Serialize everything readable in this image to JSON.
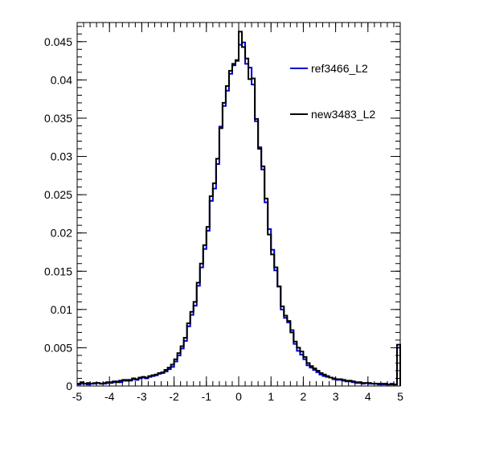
{
  "chart_data": {
    "type": "line",
    "title": "",
    "xlabel": "",
    "ylabel": "",
    "xlim": [
      -5,
      5
    ],
    "ylim": [
      0,
      0.0475
    ],
    "grid": false,
    "legend_position": "top-right",
    "x_ticks": [
      {
        "value": -5,
        "label": "-5"
      },
      {
        "value": -4,
        "label": "-4"
      },
      {
        "value": -3,
        "label": "-3"
      },
      {
        "value": -2,
        "label": "-2"
      },
      {
        "value": -1,
        "label": "-1"
      },
      {
        "value": 0,
        "label": "0"
      },
      {
        "value": 1,
        "label": "1"
      },
      {
        "value": 2,
        "label": "2"
      },
      {
        "value": 3,
        "label": "3"
      },
      {
        "value": 4,
        "label": "4"
      },
      {
        "value": 5,
        "label": "5"
      }
    ],
    "y_ticks": [
      {
        "value": 0,
        "label": "0"
      },
      {
        "value": 0.005,
        "label": "0.005"
      },
      {
        "value": 0.01,
        "label": "0.01"
      },
      {
        "value": 0.015,
        "label": "0.015"
      },
      {
        "value": 0.02,
        "label": "0.02"
      },
      {
        "value": 0.025,
        "label": "0.025"
      },
      {
        "value": 0.03,
        "label": "0.03"
      },
      {
        "value": 0.035,
        "label": "0.035"
      },
      {
        "value": 0.04,
        "label": "0.04"
      },
      {
        "value": 0.045,
        "label": "0.045"
      }
    ],
    "bin_edges": {
      "start": -5,
      "width": 0.1
    },
    "series": [
      {
        "name": "ref3466_L2",
        "color": "#0000cc",
        "values": [
          0.0002,
          0.0003,
          0.0003,
          0.0002,
          0.0003,
          0.0003,
          0.0004,
          0.0003,
          0.0003,
          0.0004,
          0.0004,
          0.0005,
          0.0006,
          0.0005,
          0.0007,
          0.0008,
          0.0007,
          0.0009,
          0.0008,
          0.001,
          0.0011,
          0.001,
          0.0012,
          0.0013,
          0.0014,
          0.0016,
          0.0017,
          0.0019,
          0.0022,
          0.0025,
          0.0032,
          0.004,
          0.0049,
          0.0059,
          0.0078,
          0.0093,
          0.0105,
          0.0131,
          0.0155,
          0.0179,
          0.0203,
          0.0242,
          0.0258,
          0.029,
          0.0339,
          0.0366,
          0.0386,
          0.0408,
          0.0419,
          0.0426,
          0.0446,
          0.0449,
          0.0421,
          0.0416,
          0.0394,
          0.0346,
          0.0312,
          0.0283,
          0.024,
          0.0205,
          0.0178,
          0.0151,
          0.013,
          0.01,
          0.0089,
          0.0083,
          0.0073,
          0.0055,
          0.0046,
          0.0041,
          0.0035,
          0.0027,
          0.0024,
          0.0021,
          0.0018,
          0.0015,
          0.0013,
          0.0012,
          0.0011,
          0.0009,
          0.0008,
          0.0008,
          0.0007,
          0.0006,
          0.0006,
          0.0005,
          0.0004,
          0.0004,
          0.0003,
          0.0004,
          0.0003,
          0.0003,
          0.0003,
          0.0002,
          0.0002,
          0.0002,
          0.0002,
          0.0003,
          0.0002,
          0.005
        ]
      },
      {
        "name": "new3483_L2",
        "color": "#000000",
        "values": [
          0.0003,
          0.0005,
          0.0003,
          0.0004,
          0.0003,
          0.0004,
          0.0004,
          0.0003,
          0.0004,
          0.0005,
          0.0005,
          0.0006,
          0.0005,
          0.0007,
          0.0008,
          0.0007,
          0.0008,
          0.001,
          0.0009,
          0.0011,
          0.0012,
          0.0011,
          0.0013,
          0.0014,
          0.0015,
          0.0017,
          0.0018,
          0.0021,
          0.0024,
          0.0028,
          0.0035,
          0.0043,
          0.0052,
          0.0063,
          0.0082,
          0.0097,
          0.011,
          0.0135,
          0.016,
          0.0184,
          0.0208,
          0.0248,
          0.0265,
          0.0297,
          0.0337,
          0.037,
          0.0392,
          0.0412,
          0.0421,
          0.0425,
          0.0463,
          0.0443,
          0.0428,
          0.0401,
          0.0402,
          0.0349,
          0.031,
          0.0287,
          0.0245,
          0.0198,
          0.0172,
          0.0155,
          0.013,
          0.0104,
          0.0092,
          0.0085,
          0.007,
          0.0058,
          0.005,
          0.0045,
          0.0038,
          0.003,
          0.0026,
          0.0023,
          0.002,
          0.0017,
          0.0015,
          0.0013,
          0.0011,
          0.001,
          0.0009,
          0.0009,
          0.0008,
          0.0007,
          0.0007,
          0.0006,
          0.0005,
          0.0005,
          0.0004,
          0.0004,
          0.0004,
          0.0003,
          0.0003,
          0.0003,
          0.0003,
          0.0003,
          0.0002,
          0.0002,
          0.0002,
          0.0054
        ]
      }
    ]
  }
}
